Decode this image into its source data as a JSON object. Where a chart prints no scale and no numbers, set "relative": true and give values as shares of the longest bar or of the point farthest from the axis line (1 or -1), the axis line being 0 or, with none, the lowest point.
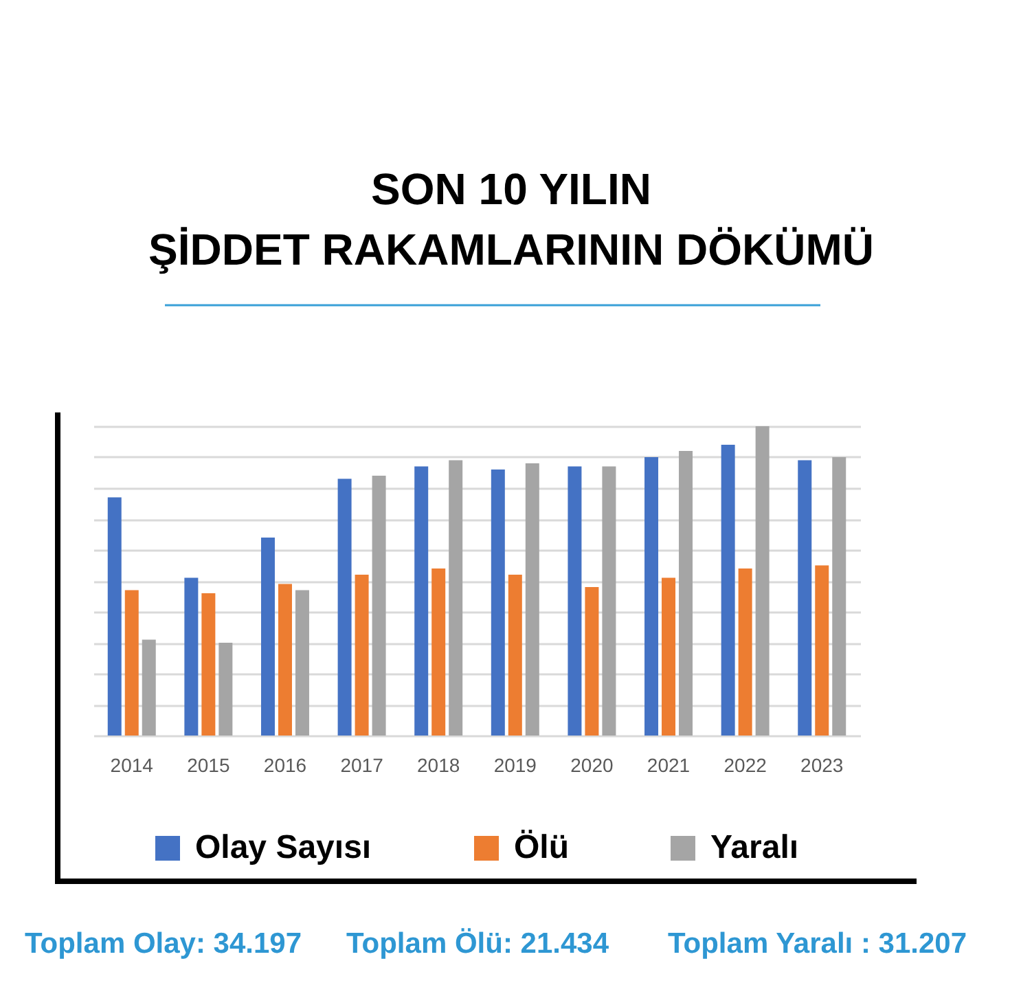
{
  "chart_data": {
    "type": "bar",
    "title": "SON 10 YILIN\nŞİDDET RAKAMLARININ DÖKÜMÜ",
    "categories": [
      "2014",
      "2015",
      "2016",
      "2017",
      "2018",
      "2019",
      "2020",
      "2021",
      "2022",
      "2023"
    ],
    "relative": true,
    "series": [
      {
        "name": "Olay Sayısı",
        "color": "#4472c4",
        "values": [
          0.77,
          0.51,
          0.64,
          0.83,
          0.87,
          0.86,
          0.87,
          0.9,
          0.94,
          0.89
        ]
      },
      {
        "name": "Ölü",
        "color": "#ed7d31",
        "values": [
          0.47,
          0.46,
          0.49,
          0.52,
          0.54,
          0.52,
          0.48,
          0.51,
          0.54,
          0.55
        ]
      },
      {
        "name": "Yaralı",
        "color": "#a5a5a5",
        "values": [
          0.31,
          0.3,
          0.47,
          0.84,
          0.89,
          0.88,
          0.87,
          0.92,
          1,
          0.9
        ]
      }
    ],
    "grid": "y",
    "legend": "bottom",
    "annotations": [
      "Toplam Olay: 34.197",
      "Toplam Ölü: 21.434",
      "Toplam Yaralı : 31.207"
    ]
  }
}
